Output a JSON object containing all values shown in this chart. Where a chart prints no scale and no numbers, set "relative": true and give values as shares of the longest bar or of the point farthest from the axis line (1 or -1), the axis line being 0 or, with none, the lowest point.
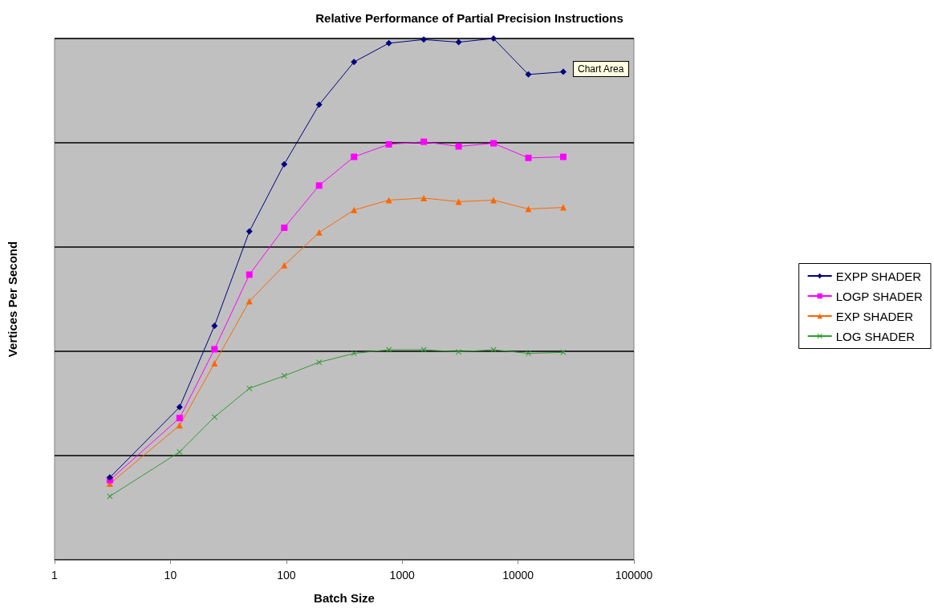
{
  "chart_data": {
    "type": "line",
    "title": "Relative Performance of Partial Precision Instructions",
    "xlabel": "Batch Size",
    "ylabel": "Vertices Per Second",
    "x": [
      3,
      12,
      24,
      48,
      96,
      192,
      384,
      768,
      1536,
      3072,
      6144,
      12288,
      24576
    ],
    "log": "x",
    "xlim": [
      1,
      100000
    ],
    "xticks": [
      1,
      10,
      100,
      1000,
      10000,
      100000
    ],
    "relative": true,
    "grid": "y",
    "legend": "right",
    "annotations": [
      "Chart Area"
    ],
    "series": [
      {
        "name": "EXPP SHADER",
        "color": "#000080",
        "marker": "diamond",
        "values": [
          0.158,
          0.293,
          0.449,
          0.63,
          0.759,
          0.873,
          0.955,
          0.991,
          0.998,
          0.993,
          1,
          0.931,
          0.936
        ]
      },
      {
        "name": "LOGP SHADER",
        "color": "#ff00ff",
        "marker": "square",
        "values": [
          0.153,
          0.272,
          0.404,
          0.547,
          0.637,
          0.718,
          0.773,
          0.797,
          0.802,
          0.793,
          0.799,
          0.771,
          0.773
        ]
      },
      {
        "name": "EXP SHADER",
        "color": "#ff6600",
        "marker": "triangle",
        "values": [
          0.146,
          0.258,
          0.377,
          0.496,
          0.565,
          0.628,
          0.671,
          0.69,
          0.694,
          0.687,
          0.69,
          0.673,
          0.676
        ]
      },
      {
        "name": "LOG SHADER",
        "color": "#339933",
        "marker": "cross",
        "values": [
          0.122,
          0.207,
          0.274,
          0.329,
          0.353,
          0.379,
          0.396,
          0.403,
          0.403,
          0.399,
          0.403,
          0.396,
          0.398
        ]
      }
    ]
  }
}
